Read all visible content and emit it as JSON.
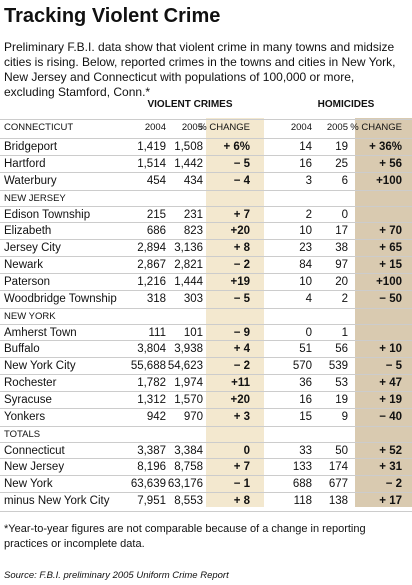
{
  "header": {
    "title": "Tracking Violent Crime",
    "intro": "Preliminary F.B.I. data show that violent crime in many towns and midsize cities is rising. Below, reported crimes in the towns and cities in New York, New Jersey and Connecticut with populations of 100,000 or more, excluding Stamford, Conn.*"
  },
  "table": {
    "group_headers": [
      "VIOLENT CRIMES",
      "HOMICIDES"
    ],
    "column_headers": [
      "2004",
      "2005",
      "% CHANGE",
      "2004",
      "2005",
      "% CHANGE"
    ],
    "sections": [
      {
        "label": "CONNECTICUT",
        "rows": [
          [
            "Bridgeport",
            "1,419",
            "1,508",
            "+ 6%",
            "14",
            "19",
            "+ 36%"
          ],
          [
            "Hartford",
            "1,514",
            "1,442",
            "− 5",
            "16",
            "25",
            "+ 56"
          ],
          [
            "Waterbury",
            "454",
            "434",
            "− 4",
            "3",
            "6",
            "+100"
          ]
        ]
      },
      {
        "label": "NEW JERSEY",
        "rows": [
          [
            "Edison Township",
            "215",
            "231",
            "+ 7",
            "2",
            "0",
            null
          ],
          [
            "Elizabeth",
            "686",
            "823",
            "+20",
            "10",
            "17",
            "+ 70"
          ],
          [
            "Jersey City",
            "2,894",
            "3,136",
            "+ 8",
            "23",
            "38",
            "+ 65"
          ],
          [
            "Newark",
            "2,867",
            "2,821",
            "− 2",
            "84",
            "97",
            "+ 15"
          ],
          [
            "Paterson",
            "1,216",
            "1,444",
            "+19",
            "10",
            "20",
            "+100"
          ],
          [
            "Woodbridge Township",
            "318",
            "303",
            "− 5",
            "4",
            "2",
            "− 50"
          ]
        ]
      },
      {
        "label": "NEW YORK",
        "rows": [
          [
            "Amherst Town",
            "111",
            "101",
            "− 9",
            "0",
            "1",
            null
          ],
          [
            "Buffalo",
            "3,804",
            "3,938",
            "+ 4",
            "51",
            "56",
            "+ 10"
          ],
          [
            "New York City",
            "55,688",
            "54,623",
            "− 2",
            "570",
            "539",
            "− 5"
          ],
          [
            "Rochester",
            "1,782",
            "1,974",
            "+11",
            "36",
            "53",
            "+ 47"
          ],
          [
            "Syracuse",
            "1,312",
            "1,570",
            "+20",
            "16",
            "19",
            "+ 19"
          ],
          [
            "Yonkers",
            "942",
            "970",
            "+ 3",
            "15",
            "9",
            "− 40"
          ]
        ]
      },
      {
        "label": "TOTALS",
        "rows": [
          [
            "Connecticut",
            "3,387",
            "3,384",
            "0",
            "33",
            "50",
            "+ 52"
          ],
          [
            "New Jersey",
            "8,196",
            "8,758",
            "+ 7",
            "133",
            "174",
            "+ 31"
          ],
          [
            "New York",
            "63,639",
            "63,176",
            "− 1",
            "688",
            "677",
            "− 2"
          ],
          [
            "minus New York City",
            "7,951",
            "8,553",
            "+ 8",
            "118",
            "138",
            "+ 17"
          ]
        ]
      }
    ]
  },
  "footer": {
    "note": "*Year-to-year figures are not comparable because of a change in reporting practices or incomplete data.",
    "source": "Source: F.B.I. preliminary 2005 Uniform Crime Report"
  }
}
